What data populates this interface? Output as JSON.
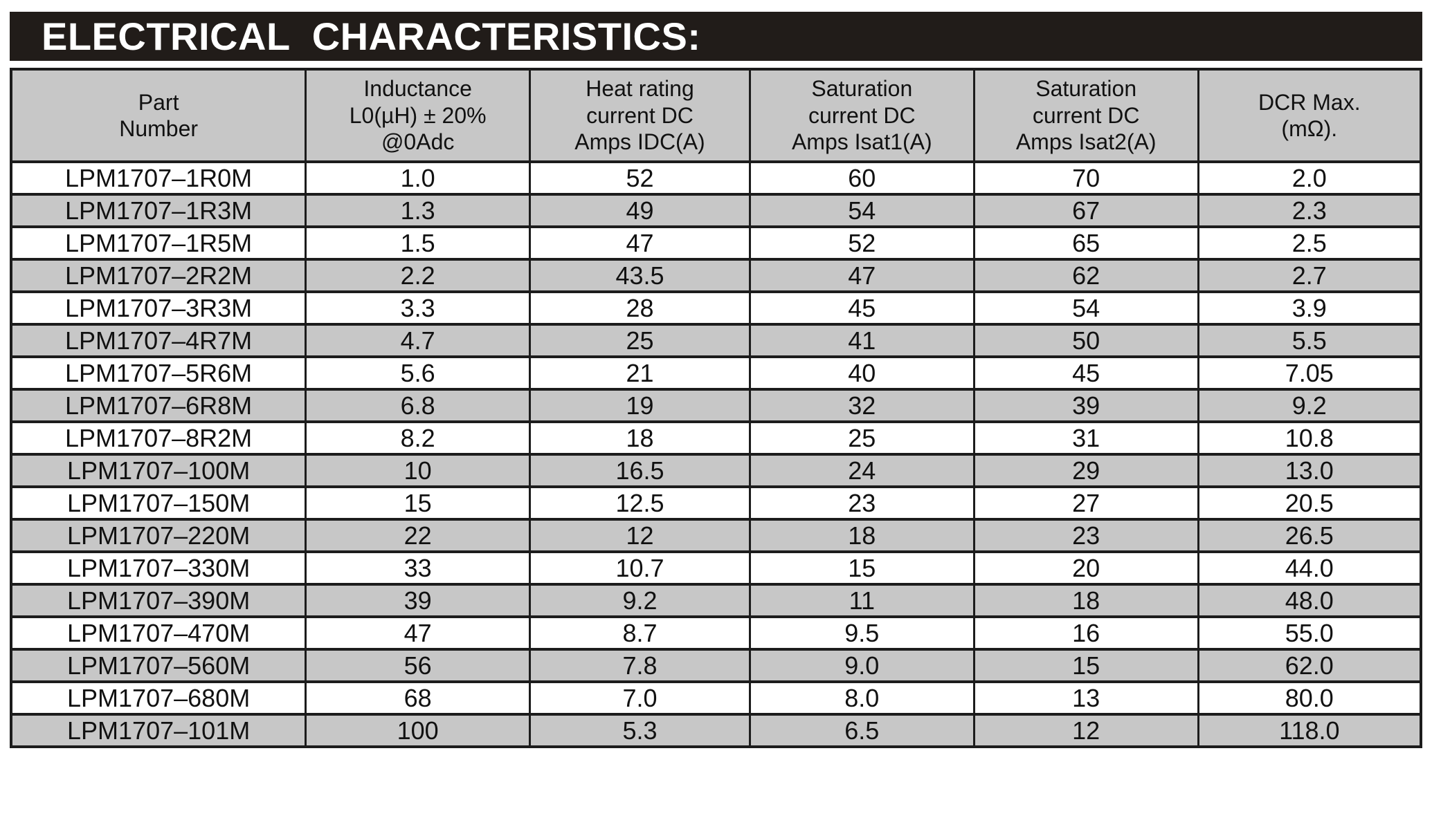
{
  "page": {
    "title": "ELECTRICAL CHARACTERISTICS:"
  },
  "colors": {
    "banner_background": "#211c19",
    "banner_text": "#ffffff",
    "gray_fill": "#c7c7c7",
    "border": "#1c1c1c",
    "text": "#111111"
  },
  "table": {
    "column_keys": [
      "part_number",
      "inductance",
      "heat_rating_current",
      "saturation_current_isat1",
      "saturation_current_isat2",
      "dcr_max"
    ],
    "column_widths": [
      "20.9%",
      "15.9%",
      "15.6%",
      "15.9%",
      "15.9%",
      "15.8%"
    ],
    "columns": [
      {
        "label": "Part\nNumber"
      },
      {
        "label": "Inductance\nL0(µH) ± 20%\n@0Adc"
      },
      {
        "label": "Heat rating\ncurrent DC\nAmps IDC(A)"
      },
      {
        "label": "Saturation\ncurrent DC\nAmps Isat1(A)"
      },
      {
        "label": "Saturation\ncurrent DC\nAmps Isat2(A)"
      },
      {
        "label": "DCR Max.\n(mΩ)."
      }
    ],
    "rows": [
      [
        "LPM1707–1R0M",
        "1.0",
        "52",
        "60",
        "70",
        "2.0"
      ],
      [
        "LPM1707–1R3M",
        "1.3",
        "49",
        "54",
        "67",
        "2.3"
      ],
      [
        "LPM1707–1R5M",
        "1.5",
        "47",
        "52",
        "65",
        "2.5"
      ],
      [
        "LPM1707–2R2M",
        "2.2",
        "43.5",
        "47",
        "62",
        "2.7"
      ],
      [
        "LPM1707–3R3M",
        "3.3",
        "28",
        "45",
        "54",
        "3.9"
      ],
      [
        "LPM1707–4R7M",
        "4.7",
        "25",
        "41",
        "50",
        "5.5"
      ],
      [
        "LPM1707–5R6M",
        "5.6",
        "21",
        "40",
        "45",
        "7.05"
      ],
      [
        "LPM1707–6R8M",
        "6.8",
        "19",
        "32",
        "39",
        "9.2"
      ],
      [
        "LPM1707–8R2M",
        "8.2",
        "18",
        "25",
        "31",
        "10.8"
      ],
      [
        "LPM1707–100M",
        "10",
        "16.5",
        "24",
        "29",
        "13.0"
      ],
      [
        "LPM1707–150M",
        "15",
        "12.5",
        "23",
        "27",
        "20.5"
      ],
      [
        "LPM1707–220M",
        "22",
        "12",
        "18",
        "23",
        "26.5"
      ],
      [
        "LPM1707–330M",
        "33",
        "10.7",
        "15",
        "20",
        "44.0"
      ],
      [
        "LPM1707–390M",
        "39",
        "9.2",
        "11",
        "18",
        "48.0"
      ],
      [
        "LPM1707–470M",
        "47",
        "8.7",
        "9.5",
        "16",
        "55.0"
      ],
      [
        "LPM1707–560M",
        "56",
        "7.8",
        "9.0",
        "15",
        "62.0"
      ],
      [
        "LPM1707–680M",
        "68",
        "7.0",
        "8.0",
        "13",
        "80.0"
      ],
      [
        "LPM1707–101M",
        "100",
        "5.3",
        "6.5",
        "12",
        "118.0"
      ]
    ]
  }
}
